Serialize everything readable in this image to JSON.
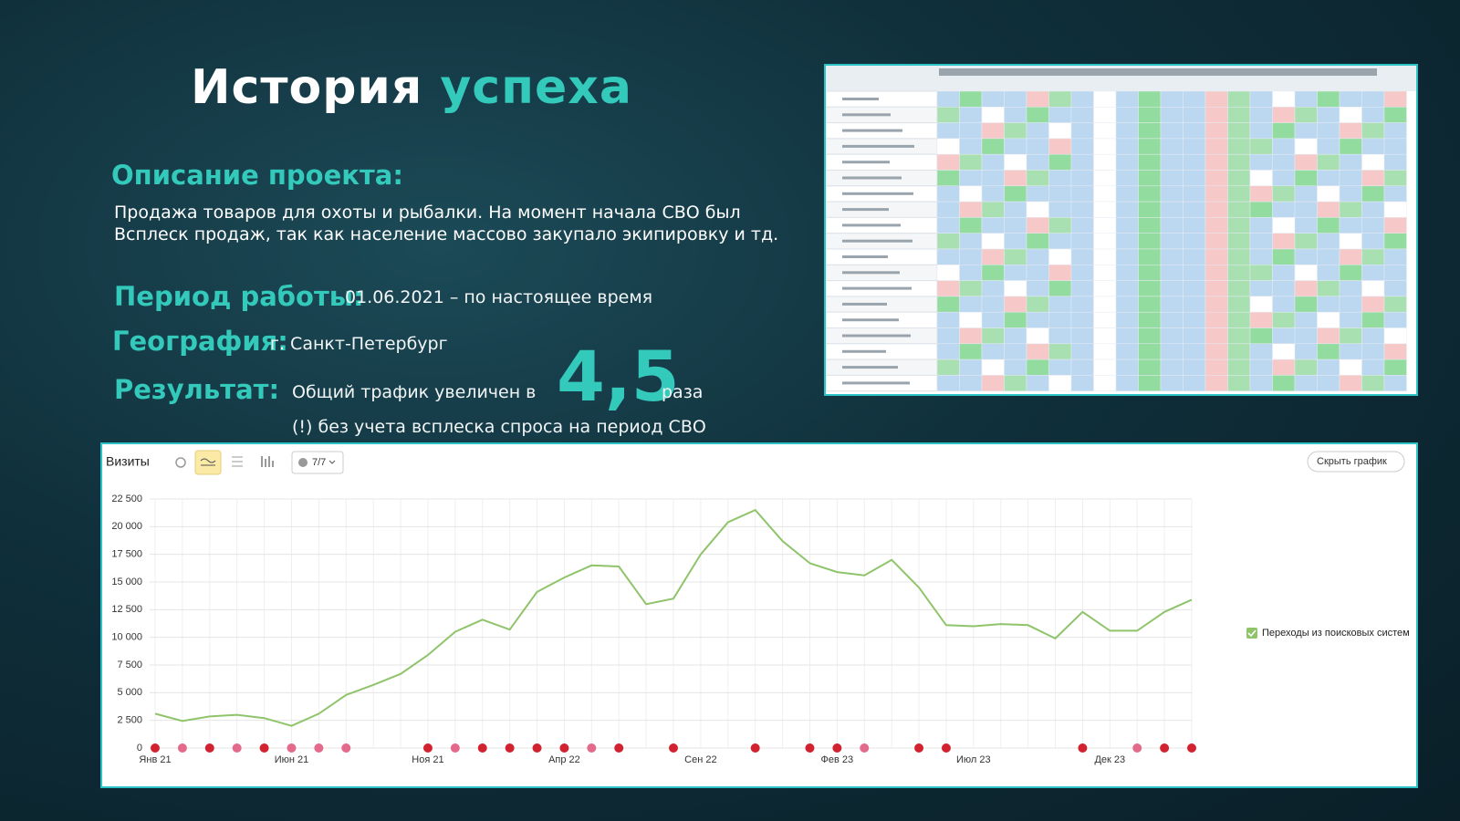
{
  "slide": {
    "title_main": "История",
    "title_accent": "успеха",
    "description_heading": "Описание проекта:",
    "description": "Продажа товаров для охоты и рыбалки. На момент начала СВО был Всплеск продаж, так как население массово закупало экипировку и тд.",
    "period_label": "Период работы:",
    "period_value": "01.06.2021 – по настоящее время",
    "geo_label": "География:",
    "geo_value": "г. Санкт-Петербург",
    "result_label": "Результат:",
    "result_text": "Общий трафик увеличен в",
    "result_number": "4,5",
    "result_unit": "раза",
    "result_note": "(!) без учета всплеска спроса на период СВО"
  },
  "toolbar": {
    "title": "Визиты",
    "counter": "7/7",
    "hide_button": "Скрыть график"
  },
  "chart_data": {
    "type": "line",
    "categories": [
      "Янв 21",
      null,
      null,
      null,
      null,
      "Июн 21",
      null,
      null,
      null,
      null,
      "Ноя 21",
      null,
      null,
      null,
      null,
      "Апр 22",
      null,
      null,
      null,
      null,
      "Сен 22",
      null,
      null,
      null,
      null,
      "Фев 23",
      null,
      null,
      null,
      null,
      "Июл 23",
      null,
      null,
      null,
      null,
      "Дек 23",
      null,
      null,
      null
    ],
    "series": [
      {
        "name": "Переходы из поисковых систем",
        "color": "#8fc46a",
        "values": [
          3100,
          2450,
          2850,
          3000,
          2700,
          2000,
          3100,
          4800,
          5700,
          6700,
          8400,
          10500,
          11600,
          10700,
          14100,
          15400,
          16500,
          16400,
          13000,
          13500,
          17500,
          20400,
          21500,
          18700,
          16700,
          15900,
          15600,
          17000,
          14500,
          11100,
          11000,
          11200,
          11100,
          9900,
          12300,
          10600,
          10600,
          12300,
          13400
        ]
      }
    ],
    "ylim": [
      0,
      22500
    ],
    "yticks": [
      0,
      {
        "value": 2500,
        "label": "2 500"
      },
      {
        "value": 5000,
        "label": "5 000"
      },
      {
        "value": 7500,
        "label": "7 500"
      },
      {
        "value": 10000,
        "label": "10 000"
      },
      {
        "value": 12500,
        "label": "12 500"
      },
      {
        "value": 15000,
        "label": "15 000"
      },
      {
        "value": 17500,
        "label": "17 500"
      },
      {
        "value": 20000,
        "label": "20 000"
      },
      {
        "value": 22500,
        "label": "22 500"
      }
    ],
    "grid": true,
    "legend": "right"
  }
}
